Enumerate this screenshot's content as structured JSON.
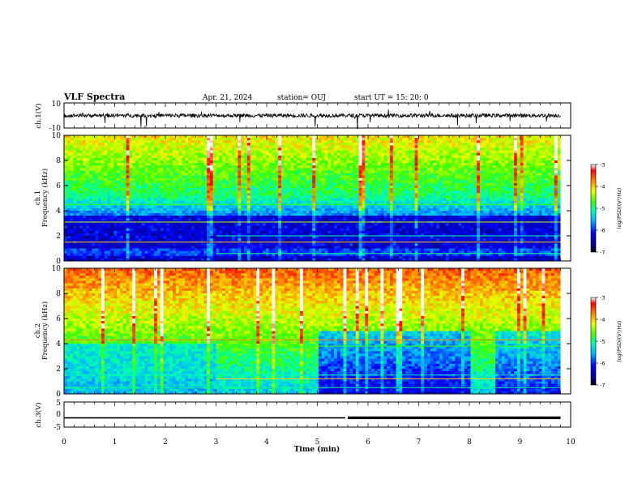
{
  "header": {
    "title": "VLF Spectra",
    "date": "Apr. 21, 2024",
    "station": "station= OUJ",
    "start": "start  UT  =  15: 20: 0"
  },
  "chart_data": [
    {
      "id": "ch1-waveform",
      "type": "line",
      "ylabel": "ch.1(V)",
      "ylim": [
        -10,
        10
      ],
      "yticks": [
        "10",
        "-10"
      ],
      "xlim": [
        0,
        10
      ],
      "description_values": {
        "baseline": 0
      }
    },
    {
      "id": "ch1-spectrogram",
      "type": "heatmap",
      "ylabel_top": "ch.1",
      "ylabel": "Frequency (kHz)",
      "ylim": [
        0,
        10
      ],
      "yticks": [
        "0",
        "2",
        "4",
        "6",
        "8",
        "10"
      ],
      "xlim": [
        0,
        10
      ],
      "colorbar": {
        "label": "log(PSD)(V²/Hz)",
        "range": [
          -7,
          -3
        ],
        "ticks": [
          "-3",
          "-4",
          "-5",
          "-6",
          "-7"
        ]
      }
    },
    {
      "id": "ch2-spectrogram",
      "type": "heatmap",
      "ylabel_top": "ch.2",
      "ylabel": "Frequency (kHz)",
      "ylim": [
        0,
        10
      ],
      "yticks": [
        "0",
        "2",
        "4",
        "6",
        "8",
        "10"
      ],
      "xlim": [
        0,
        10
      ],
      "colorbar": {
        "label": "log(PSD)(V²/Hz)",
        "range": [
          -7,
          -3
        ],
        "ticks": [
          "-3",
          "-4",
          "-5",
          "-6",
          "-7"
        ]
      }
    },
    {
      "id": "ch3-line",
      "type": "line",
      "ylabel": "ch.3(V)",
      "ylim": [
        -5,
        5
      ],
      "yticks": [
        "5",
        "0",
        "-5"
      ],
      "xlim": [
        0,
        10
      ],
      "x": [
        0,
        5.55,
        5.6,
        9.8
      ],
      "y": [
        -1.3,
        -1.3,
        -1.3,
        -1.3
      ]
    }
  ],
  "xaxis": {
    "label": "Time (min)",
    "ticks": [
      "0",
      "1",
      "2",
      "3",
      "4",
      "5",
      "6",
      "7",
      "8",
      "9",
      "10"
    ]
  },
  "colors": {
    "cmap": [
      "#000080",
      "#0000ff",
      "#00c8ff",
      "#00ff80",
      "#c8ff00",
      "#ff8000",
      "#ff0000",
      "#ffffff"
    ]
  }
}
